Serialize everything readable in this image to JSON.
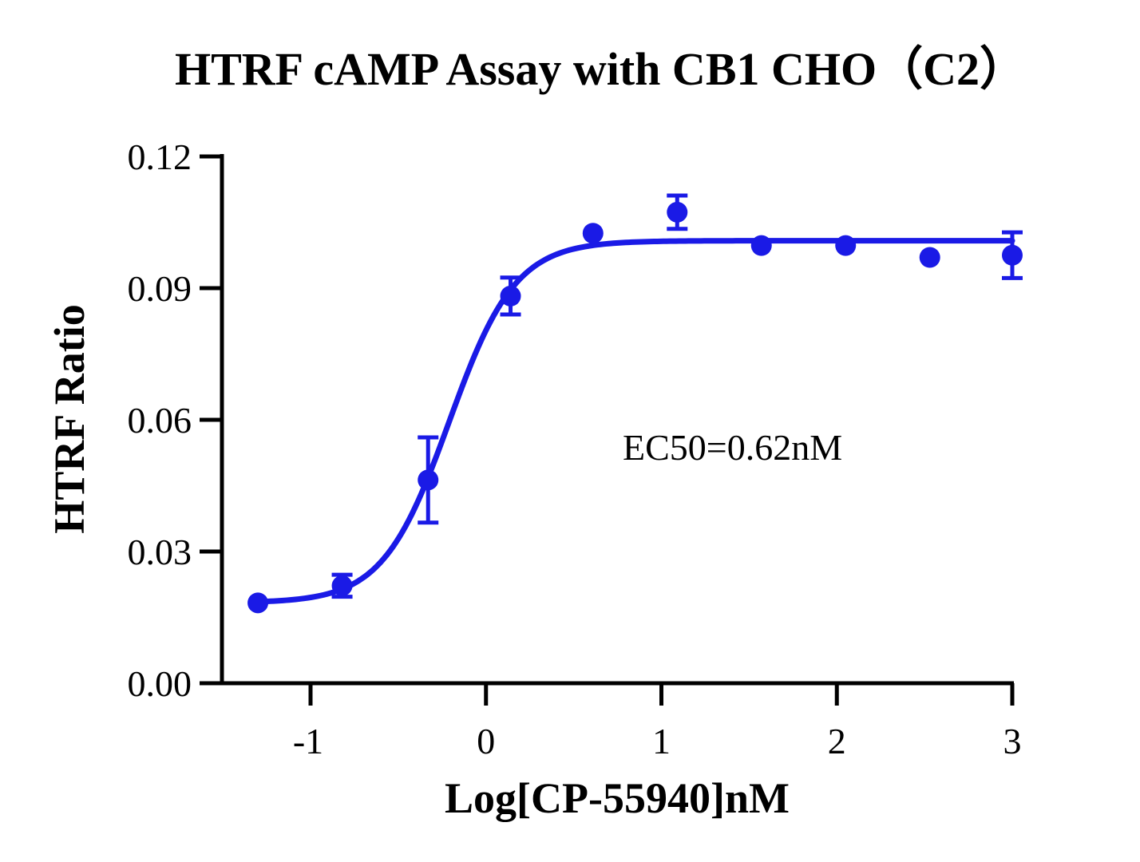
{
  "chart_data": {
    "type": "scatter",
    "title": "HTRF cAMP Assay with CB1 CHO（C2）",
    "xlabel": "Log[CP-55940]nM",
    "ylabel": "HTRF Ratio",
    "xlim": [
      -1.5,
      3
    ],
    "ylim": [
      0,
      0.12
    ],
    "x_ticks": [
      "-1",
      "0",
      "1",
      "2",
      "3"
    ],
    "x_tick_values": [
      -1,
      0,
      1,
      2,
      3
    ],
    "y_ticks": [
      "0.00",
      "0.03",
      "0.06",
      "0.09",
      "0.12"
    ],
    "y_tick_values": [
      0,
      0.03,
      0.06,
      0.09,
      0.12
    ],
    "grid": false,
    "color": "#1a1ae6",
    "annotation": "EC50=0.62nM",
    "series": [
      {
        "points": [
          {
            "x": -1.3,
            "y": 0.0183,
            "err": 0.0
          },
          {
            "x": -0.82,
            "y": 0.0222,
            "err": 0.0025
          },
          {
            "x": -0.33,
            "y": 0.0463,
            "err": 0.0097
          },
          {
            "x": 0.14,
            "y": 0.0882,
            "err": 0.0042
          },
          {
            "x": 0.61,
            "y": 0.1025,
            "err": 0.0
          },
          {
            "x": 1.09,
            "y": 0.1073,
            "err": 0.0038
          },
          {
            "x": 1.57,
            "y": 0.0997,
            "err": 0.0
          },
          {
            "x": 2.05,
            "y": 0.0997,
            "err": 0.0
          },
          {
            "x": 2.53,
            "y": 0.097,
            "err": 0.0
          },
          {
            "x": 3.0,
            "y": 0.0975,
            "err": 0.0052
          }
        ],
        "fit": {
          "model": "four-parameter logistic",
          "bottom": 0.0183,
          "top": 0.1008,
          "log_ec50": -0.21,
          "hill_slope": 2.3
        }
      }
    ]
  }
}
